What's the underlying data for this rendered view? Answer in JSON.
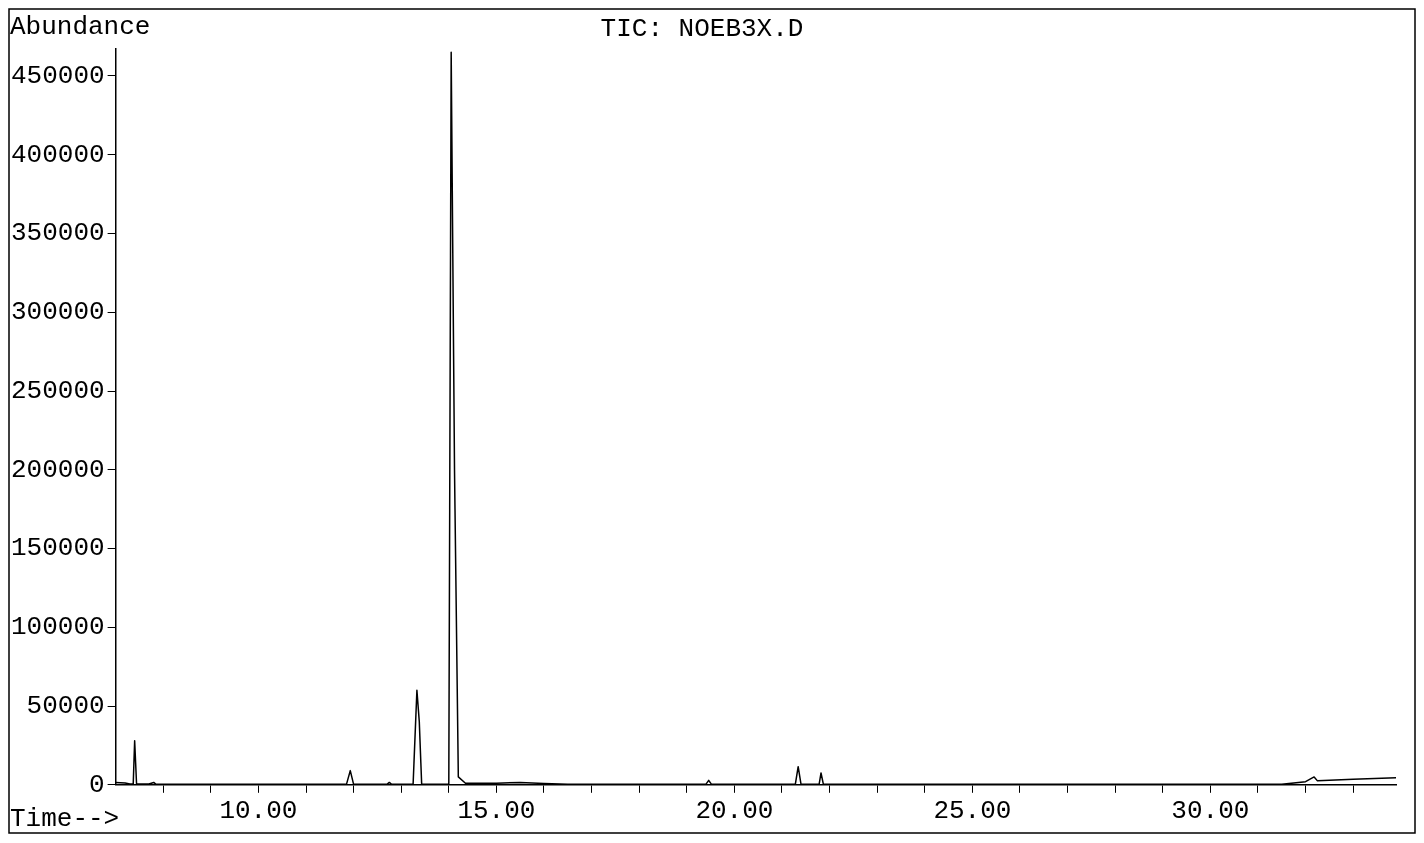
{
  "chart_data": {
    "type": "line",
    "title": "TIC: NOEB3X.D",
    "xlabel": "Time-->",
    "ylabel": "Abundance",
    "x": [
      7.0,
      7.2,
      7.3,
      7.37,
      7.4,
      7.44,
      7.7,
      7.8,
      7.85,
      8.5,
      11.85,
      11.93,
      12.0,
      12.7,
      12.75,
      12.8,
      13.25,
      13.33,
      13.38,
      13.43,
      14.0,
      14.05,
      14.12,
      14.2,
      14.35,
      15.0,
      15.5,
      16.0,
      16.5,
      19.4,
      19.46,
      19.52,
      21.28,
      21.34,
      21.4,
      21.78,
      21.82,
      21.87,
      24.0,
      31.5,
      32.0,
      32.18,
      32.25,
      33.0,
      33.9
    ],
    "series": [
      {
        "color": "#000000",
        "values": [
          1500,
          1200,
          500,
          500,
          28000,
          500,
          500,
          1500,
          300,
          300,
          300,
          9000,
          300,
          300,
          1500,
          300,
          300,
          60000,
          40000,
          300,
          300,
          465000,
          200000,
          5000,
          1000,
          1000,
          1500,
          800,
          300,
          300,
          2800,
          300,
          300,
          11500,
          300,
          300,
          7500,
          300,
          300,
          300,
          2000,
          5000,
          2500,
          3500,
          4500
        ]
      }
    ],
    "xlim": [
      7.0,
      33.9
    ],
    "ylim": [
      0,
      467000
    ],
    "xticks": [
      {
        "value": 8,
        "label": null
      },
      {
        "value": 9,
        "label": null
      },
      {
        "value": 10,
        "label": "10.00"
      },
      {
        "value": 11,
        "label": null
      },
      {
        "value": 12,
        "label": null
      },
      {
        "value": 13,
        "label": null
      },
      {
        "value": 14,
        "label": null
      },
      {
        "value": 15,
        "label": "15.00"
      },
      {
        "value": 16,
        "label": null
      },
      {
        "value": 17,
        "label": null
      },
      {
        "value": 18,
        "label": null
      },
      {
        "value": 19,
        "label": null
      },
      {
        "value": 20,
        "label": "20.00"
      },
      {
        "value": 21,
        "label": null
      },
      {
        "value": 22,
        "label": null
      },
      {
        "value": 23,
        "label": null
      },
      {
        "value": 24,
        "label": null
      },
      {
        "value": 25,
        "label": "25.00"
      },
      {
        "value": 26,
        "label": null
      },
      {
        "value": 27,
        "label": null
      },
      {
        "value": 28,
        "label": null
      },
      {
        "value": 29,
        "label": null
      },
      {
        "value": 30,
        "label": "30.00"
      },
      {
        "value": 31,
        "label": null
      },
      {
        "value": 32,
        "label": null
      },
      {
        "value": 33,
        "label": null
      }
    ],
    "yticks": [
      0,
      50000,
      100000,
      150000,
      200000,
      250000,
      300000,
      350000,
      400000,
      450000
    ],
    "grid": false,
    "legend": false,
    "marker": "none",
    "line_style": "solid"
  }
}
